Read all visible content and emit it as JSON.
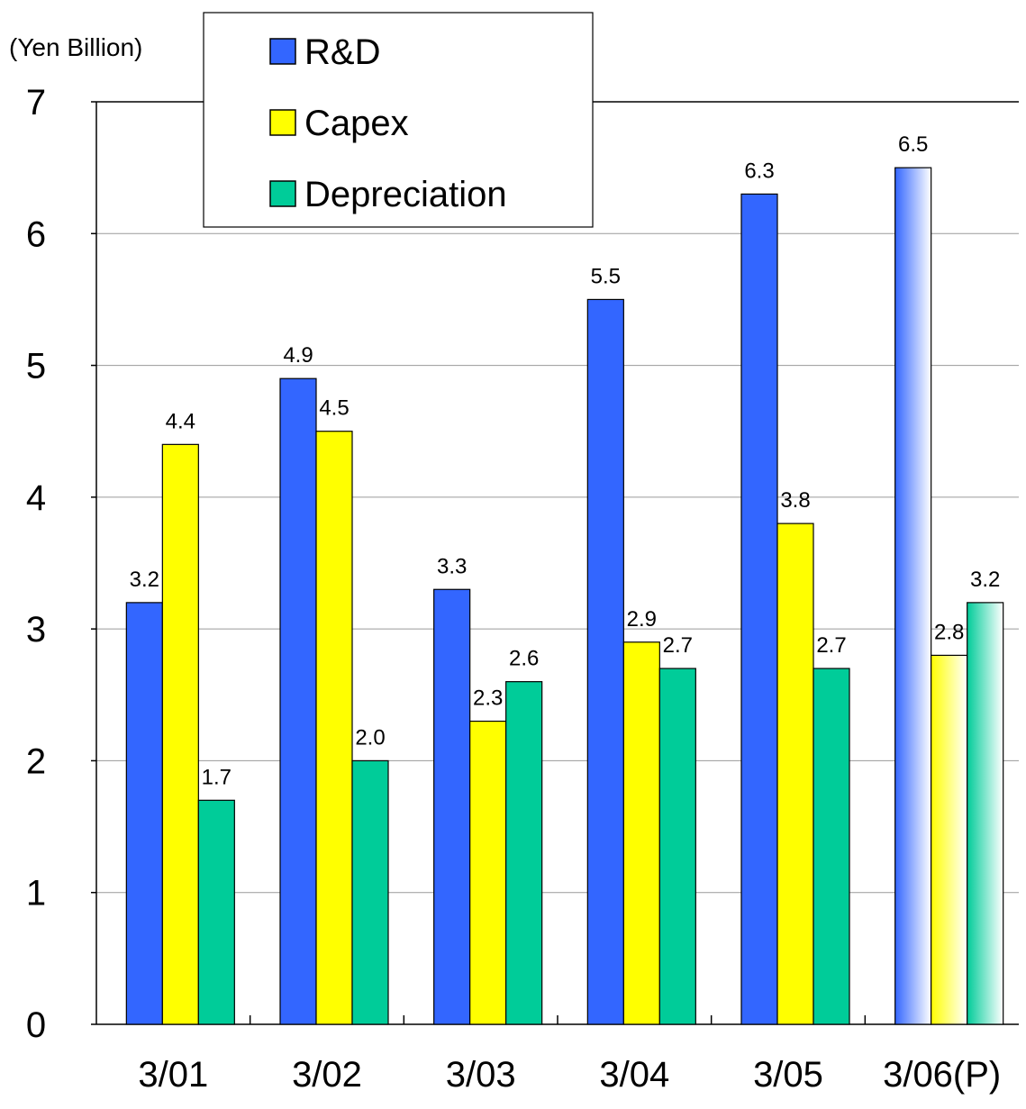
{
  "chart_data": {
    "type": "bar",
    "unit_label": "(Yen Billion)",
    "categories": [
      "3/01",
      "3/02",
      "3/03",
      "3/04",
      "3/05",
      "3/06(P)"
    ],
    "series": [
      {
        "name": "R&D",
        "color": "#3366ff",
        "values": [
          3.2,
          4.9,
          3.3,
          5.5,
          6.3,
          6.5
        ],
        "labels": [
          "3.2",
          "4.9",
          "3.3",
          "5.5",
          "6.3",
          "6.5"
        ]
      },
      {
        "name": "Capex",
        "color": "#ffff00",
        "values": [
          4.4,
          4.5,
          2.3,
          2.9,
          3.8,
          2.8
        ],
        "labels": [
          "4.4",
          "4.5",
          "2.3",
          "2.9",
          "3.8",
          "2.8"
        ]
      },
      {
        "name": "Depreciation",
        "color": "#00cc99",
        "values": [
          1.7,
          2.0,
          2.6,
          2.7,
          2.7,
          3.2
        ],
        "labels": [
          "1.7",
          "2.0",
          "2.6",
          "2.7",
          "2.7",
          "3.2"
        ]
      }
    ],
    "ylim": [
      0,
      7
    ],
    "yticks": [
      "0",
      "1",
      "2",
      "3",
      "4",
      "5",
      "6",
      "7"
    ],
    "grid": true,
    "legend": "top-left",
    "projected_category": "3/06(P)"
  }
}
